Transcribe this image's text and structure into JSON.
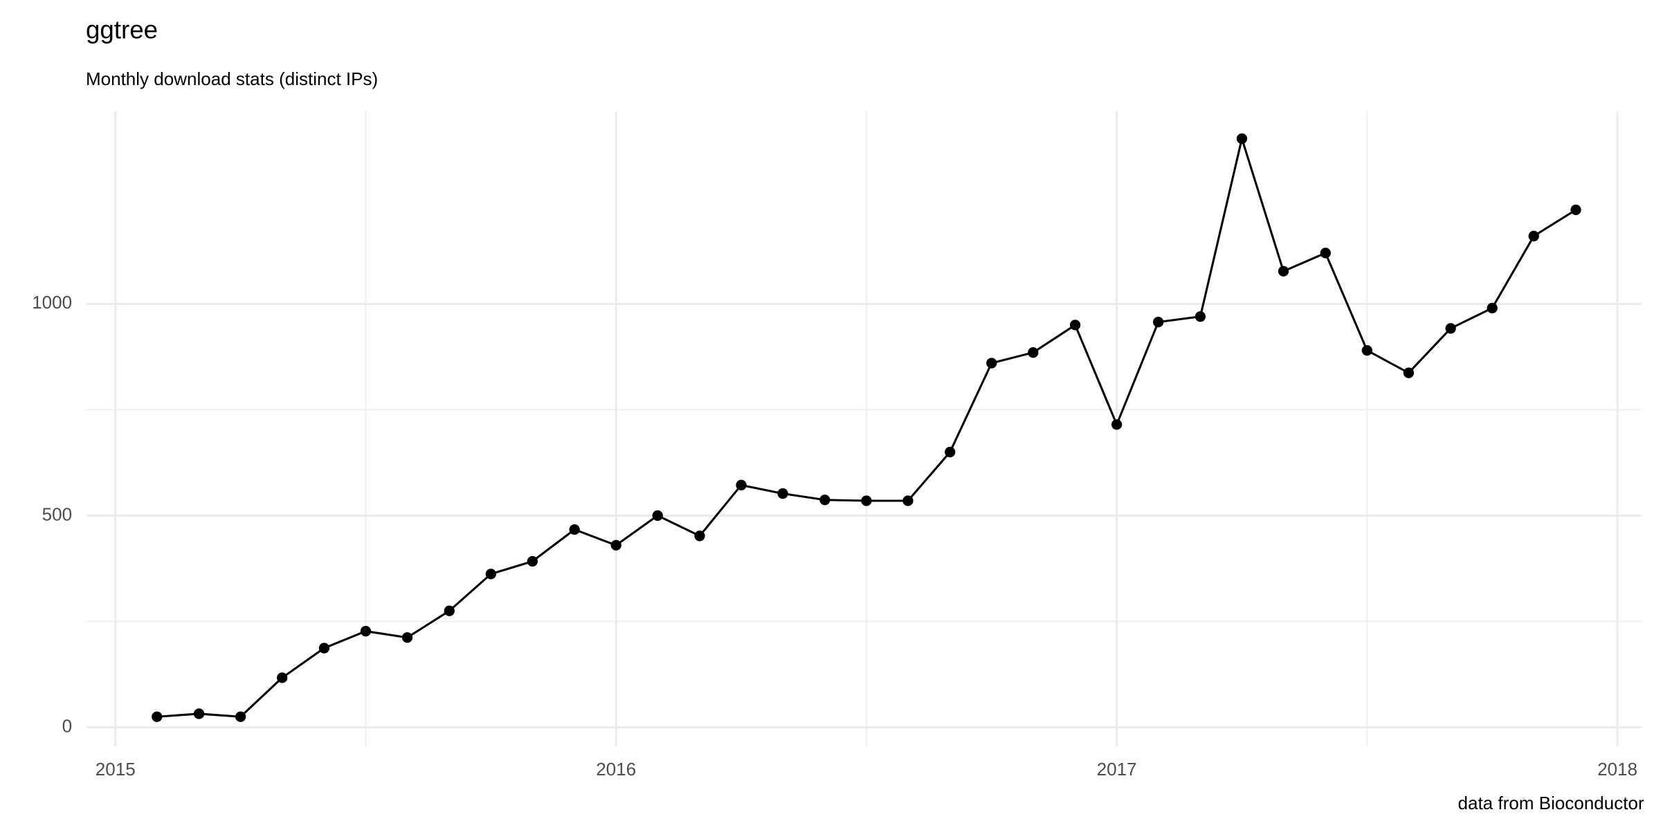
{
  "chart_data": {
    "type": "line",
    "title": "ggtree",
    "subtitle": "Monthly download stats (distinct IPs)",
    "caption": "data from Bioconductor",
    "x": [
      2015.083,
      2015.167,
      2015.25,
      2015.333,
      2015.417,
      2015.5,
      2015.583,
      2015.667,
      2015.75,
      2015.833,
      2015.917,
      2016.0,
      2016.083,
      2016.167,
      2016.25,
      2016.333,
      2016.417,
      2016.5,
      2016.583,
      2016.667,
      2016.75,
      2016.833,
      2016.917,
      2017.0,
      2017.083,
      2017.167,
      2017.25,
      2017.333,
      2017.417,
      2017.5,
      2017.583,
      2017.667,
      2017.75,
      2017.833,
      2017.917
    ],
    "series": [
      {
        "color": "#000000",
        "values": [
          25,
          32,
          25,
          117,
          187,
          227,
          212,
          275,
          362,
          392,
          467,
          430,
          500,
          452,
          572,
          552,
          537,
          535,
          535,
          650,
          860,
          885,
          950,
          715,
          957,
          970,
          1390,
          1077,
          1120,
          890,
          837,
          942,
          990,
          1160,
          1222
        ]
      }
    ],
    "xlim": [
      2014.943,
      2018.049
    ],
    "xticks": [
      2015,
      2016,
      2017,
      2018
    ],
    "ylim": [
      -45,
      1455
    ],
    "yticks": [
      0,
      500,
      1000
    ],
    "grid": true
  }
}
